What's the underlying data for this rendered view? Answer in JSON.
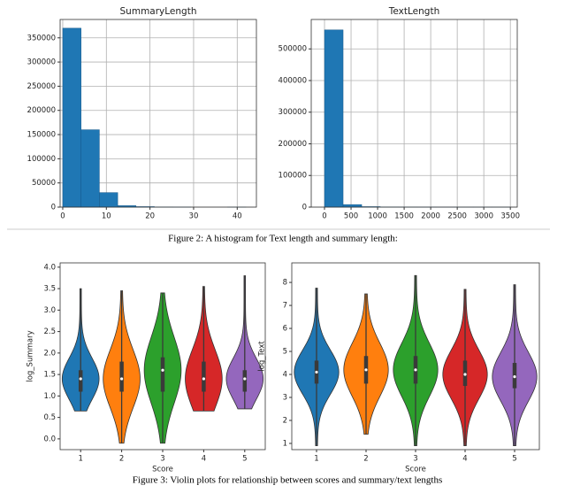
{
  "chart_data": [
    {
      "type": "histogram",
      "title": "SummaryLength",
      "color": "#1f77b4",
      "grid": true,
      "bins": [
        0,
        4.2,
        8.4,
        12.6,
        16.8,
        21,
        25.2,
        29.4,
        33.6,
        37.8,
        42
      ],
      "values": [
        370000,
        160000,
        30000,
        3000,
        1000,
        300,
        100,
        0,
        0,
        10
      ],
      "xlim": [
        -0.6,
        44.4
      ],
      "xticks": [
        0,
        10,
        20,
        30,
        40
      ],
      "ylim": [
        0,
        388000
      ],
      "yticks": [
        0,
        50000,
        100000,
        150000,
        200000,
        250000,
        300000,
        350000
      ]
    },
    {
      "type": "histogram",
      "title": "TextLength",
      "color": "#1f77b4",
      "grid": true,
      "bins": [
        0,
        350,
        700,
        1050,
        1400,
        1750,
        2100,
        2450,
        2800,
        3150,
        3500
      ],
      "values": [
        560000,
        8000,
        1500,
        500,
        200,
        100,
        50,
        20,
        10,
        5
      ],
      "xlim": [
        -250,
        3630
      ],
      "xticks": [
        0,
        500,
        1000,
        1500,
        2000,
        2500,
        3000,
        3500
      ],
      "ylim": [
        0,
        593000
      ],
      "yticks": [
        0,
        100000,
        200000,
        300000,
        400000,
        500000
      ]
    },
    {
      "type": "violin",
      "x_label": "Score",
      "y_label": "log_Summary",
      "categories": [
        "1",
        "2",
        "3",
        "4",
        "5"
      ],
      "colors": [
        "#1f77b4",
        "#ff7f0e",
        "#2ca02c",
        "#d62728",
        "#9467bd"
      ],
      "min": [
        0.65,
        -0.1,
        -0.1,
        0.65,
        0.7
      ],
      "q1": [
        1.1,
        1.1,
        1.1,
        1.1,
        1.1
      ],
      "median": [
        1.4,
        1.4,
        1.6,
        1.4,
        1.4
      ],
      "q3": [
        1.6,
        1.8,
        1.9,
        1.8,
        1.6
      ],
      "max": [
        3.5,
        3.45,
        3.4,
        3.55,
        3.8
      ],
      "ylim": [
        -0.25,
        4.1
      ],
      "yticks": [
        {
          "value": 0,
          "label": "0.0"
        },
        {
          "value": 0.5,
          "label": "0.5"
        },
        {
          "value": 1,
          "label": "1.0"
        },
        {
          "value": 1.5,
          "label": "1.5"
        },
        {
          "value": 2,
          "label": "2.0"
        },
        {
          "value": 2.5,
          "label": "2.5"
        },
        {
          "value": 3,
          "label": "3.0"
        },
        {
          "value": 3.5,
          "label": "3.5"
        },
        {
          "value": 4,
          "label": "4.0"
        }
      ]
    },
    {
      "type": "violin",
      "x_label": "Score",
      "y_label": "log_Text",
      "categories": [
        "1",
        "2",
        "3",
        "4",
        "5"
      ],
      "colors": [
        "#1f77b4",
        "#ff7f0e",
        "#2ca02c",
        "#d62728",
        "#9467bd"
      ],
      "min": [
        0.9,
        1.4,
        0.9,
        0.9,
        0.9
      ],
      "q1": [
        3.6,
        3.6,
        3.6,
        3.5,
        3.4
      ],
      "median": [
        4.1,
        4.2,
        4.2,
        4.0,
        3.9
      ],
      "q3": [
        4.6,
        4.8,
        4.8,
        4.6,
        4.5
      ],
      "max": [
        7.75,
        7.5,
        8.3,
        7.7,
        7.9
      ],
      "ylim": [
        0.73,
        8.85
      ],
      "yticks": [
        1,
        2,
        3,
        4,
        5,
        6,
        7,
        8
      ]
    }
  ],
  "figure_captions": [
    "Figure 2:  A histogram for Text length and summary length:",
    "Figure 3:  Violin plots for relationship between scores and summary/text lengths"
  ]
}
